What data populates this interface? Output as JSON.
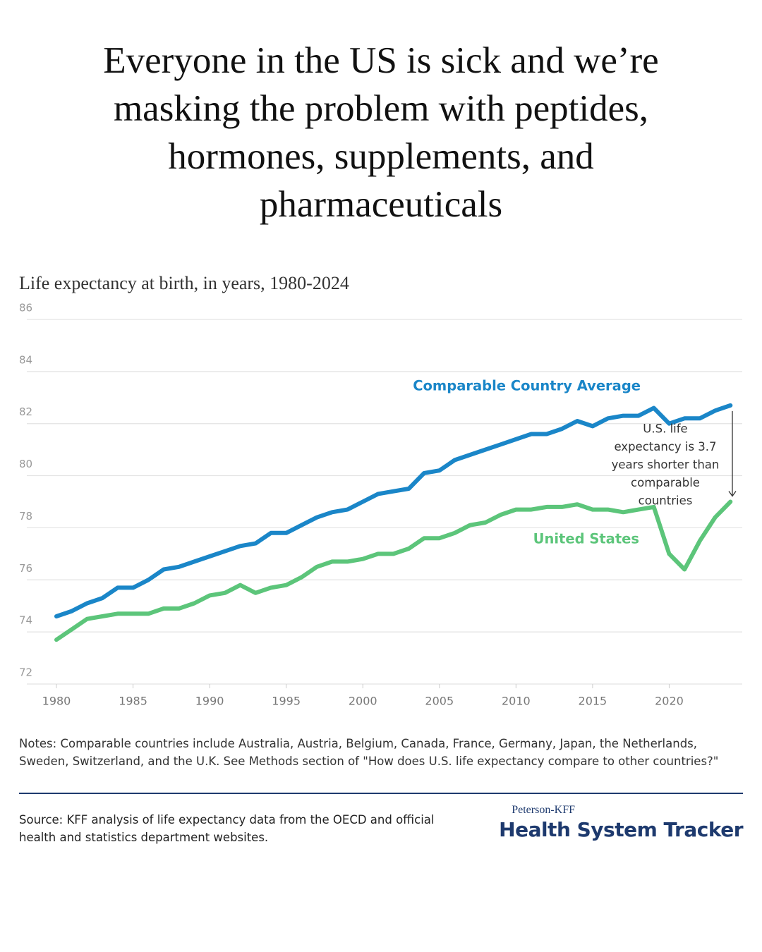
{
  "headline": "Everyone in the US is sick and we’re masking the problem with peptides, hormones, supplements, and pharmaceuticals",
  "brand": {
    "small": "Peterson-KFF",
    "large": "Health System Tracker"
  },
  "chart_data": {
    "type": "line",
    "title": "Life expectancy at birth, in years, 1980-2024",
    "x": [
      1980,
      1981,
      1982,
      1983,
      1984,
      1985,
      1986,
      1987,
      1988,
      1989,
      1990,
      1991,
      1992,
      1993,
      1994,
      1995,
      1996,
      1997,
      1998,
      1999,
      2000,
      2001,
      2002,
      2003,
      2004,
      2005,
      2006,
      2007,
      2008,
      2009,
      2010,
      2011,
      2012,
      2013,
      2014,
      2015,
      2016,
      2017,
      2018,
      2019,
      2020,
      2021,
      2022,
      2023,
      2024
    ],
    "series": [
      {
        "name": "Comparable Country Average",
        "color": "#1a86c8",
        "values": [
          74.6,
          74.8,
          75.1,
          75.3,
          75.7,
          75.7,
          76.0,
          76.4,
          76.5,
          76.7,
          76.9,
          77.1,
          77.3,
          77.4,
          77.8,
          77.8,
          78.1,
          78.4,
          78.6,
          78.7,
          79.0,
          79.3,
          79.4,
          79.5,
          80.1,
          80.2,
          80.6,
          80.8,
          81.0,
          81.2,
          81.4,
          81.6,
          81.6,
          81.8,
          82.1,
          81.9,
          82.2,
          82.3,
          82.3,
          82.6,
          82.0,
          82.2,
          82.2,
          82.5,
          82.7
        ]
      },
      {
        "name": "United States",
        "color": "#5cc57a",
        "values": [
          73.7,
          74.1,
          74.5,
          74.6,
          74.7,
          74.7,
          74.7,
          74.9,
          74.9,
          75.1,
          75.4,
          75.5,
          75.8,
          75.5,
          75.7,
          75.8,
          76.1,
          76.5,
          76.7,
          76.7,
          76.8,
          77.0,
          77.0,
          77.2,
          77.6,
          77.6,
          77.8,
          78.1,
          78.2,
          78.5,
          78.7,
          78.7,
          78.8,
          78.8,
          78.9,
          78.7,
          78.7,
          78.6,
          78.7,
          78.8,
          77.0,
          76.4,
          77.5,
          78.4,
          79.0
        ]
      }
    ],
    "xlim": [
      1980,
      2025
    ],
    "xticks": [
      1980,
      1985,
      1990,
      1995,
      2000,
      2005,
      2010,
      2015,
      2020
    ],
    "ylim": [
      72,
      86
    ],
    "yticks": [
      72,
      74,
      76,
      78,
      80,
      82,
      84,
      86
    ],
    "grid": true,
    "annotation": [
      "U.S. life",
      "expectancy is 3.7",
      "years shorter than",
      "comparable",
      "countries"
    ],
    "notes": "Notes: Comparable countries include Australia, Austria, Belgium, Canada, France, Germany, Japan, the Netherlands, Sweden, Switzerland, and the U.K. See Methods section of \"How does U.S. life expectancy compare to other countries?\"",
    "source": "Source: KFF analysis of life expectancy data from the OECD and official health and statistics department websites."
  }
}
